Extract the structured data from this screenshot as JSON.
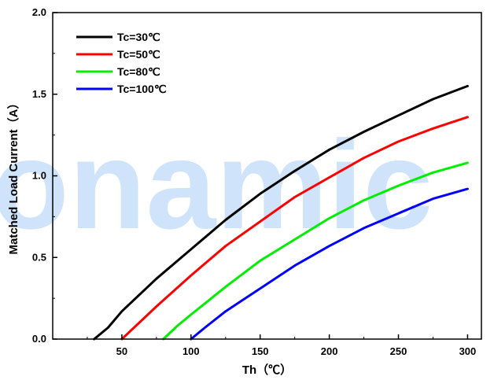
{
  "chart_data": {
    "type": "line",
    "xlabel": "Th（℃）",
    "ylabel": "Matched Load Current（A）",
    "xlim": [
      0,
      310
    ],
    "ylim": [
      0,
      2.0
    ],
    "xticks": [
      50,
      100,
      150,
      200,
      250,
      300
    ],
    "yticks": [
      0.0,
      0.5,
      1.0,
      1.5,
      2.0
    ],
    "xtick_labels": [
      "50",
      "100",
      "150",
      "200",
      "250",
      "300"
    ],
    "ytick_labels": [
      "0.0",
      "0.5",
      "1.0",
      "1.5",
      "2.0"
    ],
    "grid": false,
    "legend_position": "top-left",
    "series": [
      {
        "name": "Tc=30℃",
        "color": "#000000",
        "x": [
          30,
          40,
          50,
          75,
          100,
          125,
          150,
          175,
          200,
          225,
          250,
          275,
          300
        ],
        "y": [
          0.0,
          0.07,
          0.17,
          0.37,
          0.55,
          0.73,
          0.89,
          1.03,
          1.16,
          1.27,
          1.37,
          1.47,
          1.55
        ]
      },
      {
        "name": "Tc=50℃",
        "color": "#ff0000",
        "x": [
          50,
          55,
          75,
          100,
          125,
          150,
          175,
          200,
          225,
          250,
          275,
          300
        ],
        "y": [
          0.0,
          0.04,
          0.2,
          0.39,
          0.57,
          0.72,
          0.87,
          0.99,
          1.11,
          1.21,
          1.29,
          1.36
        ]
      },
      {
        "name": "Tc=80℃",
        "color": "#00ee00",
        "x": [
          80,
          90,
          100,
          125,
          150,
          175,
          200,
          225,
          250,
          275,
          300
        ],
        "y": [
          0.0,
          0.08,
          0.15,
          0.32,
          0.48,
          0.61,
          0.74,
          0.85,
          0.94,
          1.02,
          1.08
        ]
      },
      {
        "name": "Tc=100℃",
        "color": "#0000ff",
        "x": [
          100,
          110,
          125,
          150,
          175,
          200,
          225,
          250,
          275,
          300
        ],
        "y": [
          0.0,
          0.07,
          0.17,
          0.31,
          0.45,
          0.57,
          0.68,
          0.77,
          0.86,
          0.92
        ]
      }
    ]
  },
  "watermark": {
    "text": "onamic",
    "color": "#cfe4fb"
  }
}
